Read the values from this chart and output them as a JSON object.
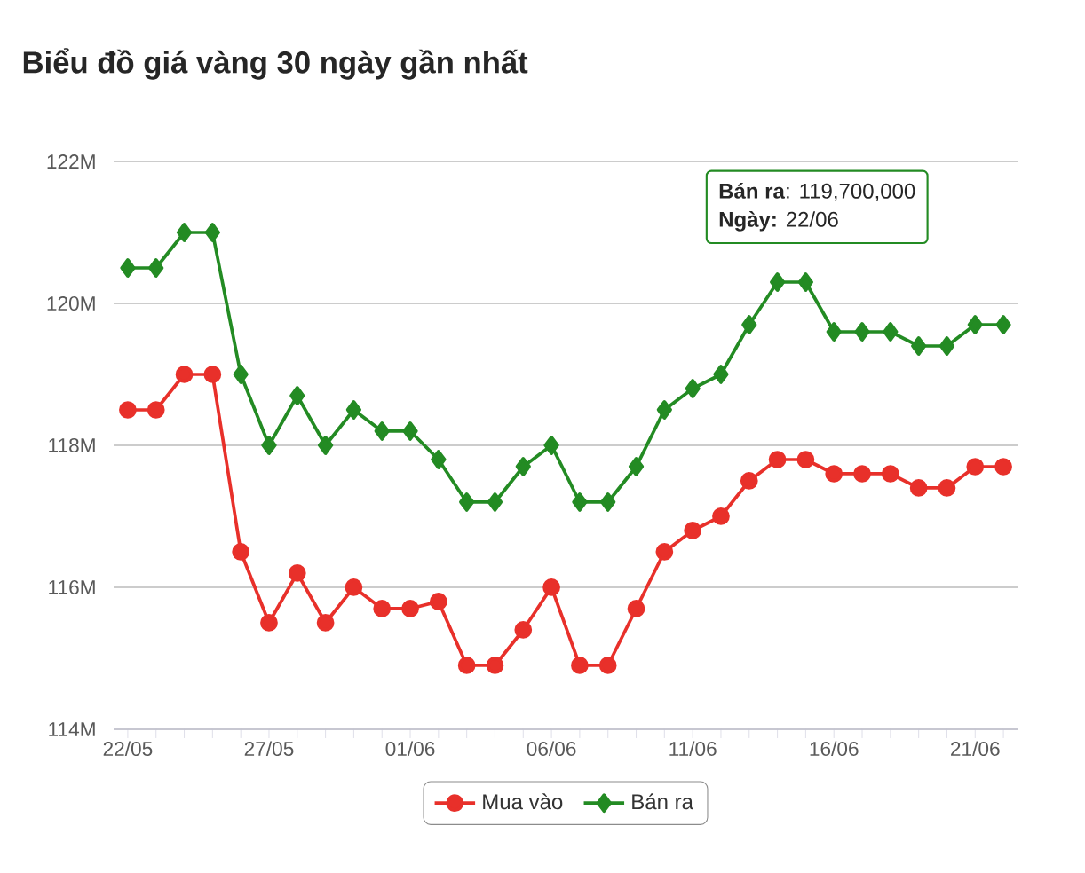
{
  "chart_data": {
    "type": "line",
    "title": "Biểu đồ giá vàng 30 ngày gần nhất",
    "categories": [
      "22/05",
      null,
      null,
      null,
      null,
      "27/05",
      null,
      null,
      null,
      null,
      "01/06",
      null,
      null,
      null,
      null,
      "06/06",
      null,
      null,
      null,
      null,
      "11/06",
      null,
      null,
      null,
      null,
      "16/06",
      null,
      null,
      null,
      null,
      "21/06",
      null
    ],
    "series": [
      {
        "name": "Mua vào",
        "color": "#e8302a",
        "marker": "circle",
        "values": [
          118.5,
          118.5,
          119,
          119,
          116.5,
          115.5,
          116.2,
          115.5,
          116,
          115.7,
          115.7,
          115.8,
          114.9,
          114.9,
          115.4,
          116,
          114.9,
          114.9,
          115.7,
          116.5,
          116.8,
          117,
          117.5,
          117.8,
          117.8,
          117.6,
          117.6,
          117.6,
          117.4,
          117.4,
          117.7,
          117.7
        ]
      },
      {
        "name": "Bán ra",
        "color": "#238b23",
        "marker": "diamond",
        "values": [
          120.5,
          120.5,
          121,
          121,
          119,
          118,
          118.7,
          118,
          118.5,
          118.2,
          118.2,
          117.8,
          117.2,
          117.2,
          117.7,
          118,
          117.2,
          117.2,
          117.7,
          118.5,
          118.8,
          119,
          119.7,
          120.3,
          120.3,
          119.6,
          119.6,
          119.6,
          119.4,
          119.4,
          119.7,
          119.7
        ]
      }
    ],
    "ylim": [
      114,
      122
    ],
    "yticks": [
      {
        "value": 114,
        "label": "114M"
      },
      {
        "value": 116,
        "label": "116M"
      },
      {
        "value": 118,
        "label": "118M"
      },
      {
        "value": 120,
        "label": "120M"
      },
      {
        "value": 122,
        "label": "122M"
      }
    ],
    "grid": "y",
    "legend": "bottom",
    "annotations": [
      "**Bán ra**: 119,700,000",
      "**Ngày:** 22/06"
    ]
  }
}
